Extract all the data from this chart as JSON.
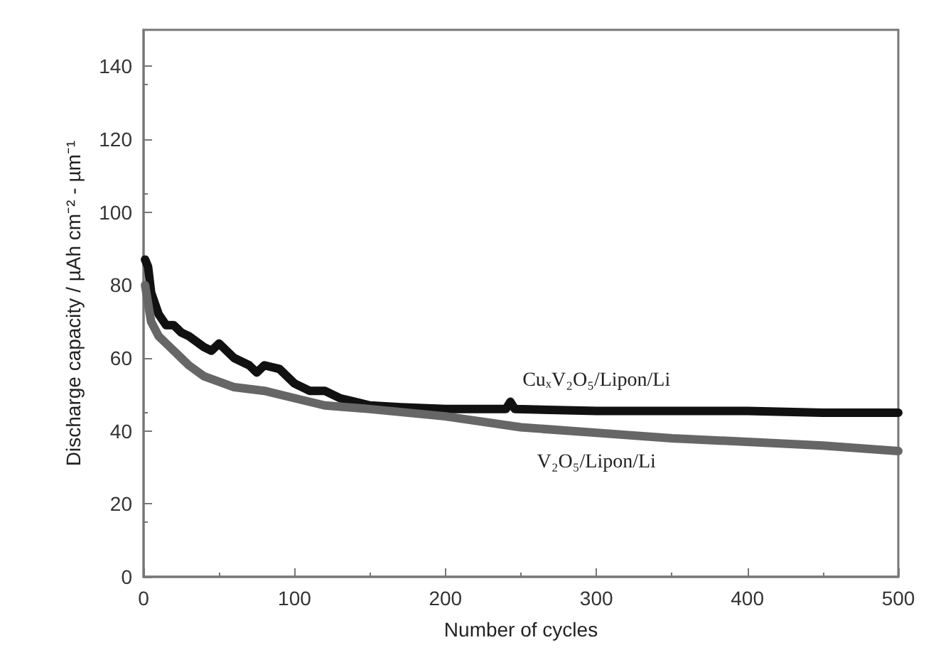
{
  "chart_data": {
    "type": "line",
    "xlabel": "Number of cycles",
    "ylabel": "Discharge capacity / µAh cm⁻² - µm⁻¹",
    "xlim": [
      0,
      500
    ],
    "ylim": [
      0,
      150
    ],
    "xticks": [
      0,
      100,
      200,
      300,
      400,
      500
    ],
    "yticks": [
      0,
      20,
      40,
      60,
      80,
      100,
      120,
      140
    ],
    "grid": false,
    "legend": false,
    "marker": "none",
    "line_style": "solid",
    "series": [
      {
        "name": "CuₓV₂O₅/Lipon/Li",
        "color": "#111111",
        "x": [
          1,
          3,
          5,
          10,
          15,
          20,
          25,
          30,
          40,
          45,
          50,
          55,
          60,
          70,
          75,
          80,
          90,
          95,
          100,
          110,
          120,
          130,
          140,
          150,
          170,
          200,
          240,
          243,
          246,
          300,
          350,
          400,
          450,
          500
        ],
        "values": [
          87,
          85,
          78,
          72,
          69,
          69,
          67,
          66,
          63,
          62,
          64,
          62,
          60,
          58,
          56,
          58,
          57,
          55,
          53,
          51,
          51,
          49,
          48,
          47,
          46.5,
          46,
          46,
          48,
          46,
          45.5,
          45.5,
          45.5,
          45,
          45
        ]
      },
      {
        "name": "V₂O₅/Lipon/Li",
        "color": "#666666",
        "x": [
          1,
          3,
          5,
          10,
          20,
          30,
          40,
          50,
          60,
          80,
          100,
          120,
          150,
          200,
          250,
          300,
          350,
          400,
          450,
          500
        ],
        "values": [
          80,
          75,
          70,
          66,
          62,
          58,
          55,
          53.5,
          52,
          51,
          49,
          47,
          46,
          44,
          41,
          39.5,
          38,
          37,
          36,
          34.5
        ]
      }
    ]
  }
}
